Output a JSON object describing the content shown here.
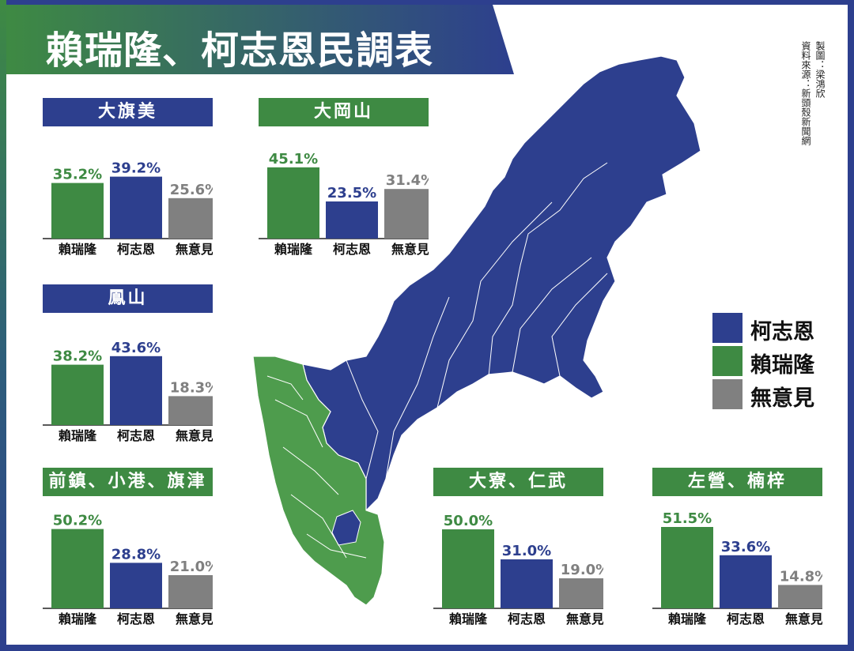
{
  "title": "賴瑞隆、柯志恩民調表",
  "credits": [
    "製圖：梁鴻欣",
    "資料來源：新頭殼新聞網"
  ],
  "colors": {
    "green": "#3e8a43",
    "blue": "#2d3f8e",
    "gray": "#808080",
    "border": "#2d3f8e"
  },
  "legend": [
    {
      "label": "柯志恩",
      "color": "#2d3f8e"
    },
    {
      "label": "賴瑞隆",
      "color": "#3e8a43"
    },
    {
      "label": "無意見",
      "color": "#808080"
    }
  ],
  "chart_data": [
    {
      "type": "bar",
      "title": "大旗美",
      "title_color": "#2d3f8e",
      "categories": [
        "賴瑞隆",
        "柯志恩",
        "無意見"
      ],
      "values": [
        35.2,
        39.2,
        25.6
      ],
      "labels": [
        "35.2%",
        "39.2%",
        "25.6%"
      ],
      "colors": [
        "#3e8a43",
        "#2d3f8e",
        "#808080"
      ],
      "unit": "%"
    },
    {
      "type": "bar",
      "title": "大岡山",
      "title_color": "#3e8a43",
      "categories": [
        "賴瑞隆",
        "柯志恩",
        "無意見"
      ],
      "values": [
        45.1,
        23.5,
        31.4
      ],
      "labels": [
        "45.1%",
        "23.5%",
        "31.4%"
      ],
      "colors": [
        "#3e8a43",
        "#2d3f8e",
        "#808080"
      ],
      "unit": "%"
    },
    {
      "type": "bar",
      "title": "鳳山",
      "title_color": "#2d3f8e",
      "categories": [
        "賴瑞隆",
        "柯志恩",
        "無意見"
      ],
      "values": [
        38.2,
        43.6,
        18.3
      ],
      "labels": [
        "38.2%",
        "43.6%",
        "18.3%"
      ],
      "colors": [
        "#3e8a43",
        "#2d3f8e",
        "#808080"
      ],
      "unit": "%"
    },
    {
      "type": "bar",
      "title": "前鎮、小港、旗津",
      "title_color": "#3e8a43",
      "categories": [
        "賴瑞隆",
        "柯志恩",
        "無意見"
      ],
      "values": [
        50.2,
        28.8,
        21.0
      ],
      "labels": [
        "50.2%",
        "28.8%",
        "21.0%"
      ],
      "colors": [
        "#3e8a43",
        "#2d3f8e",
        "#808080"
      ],
      "unit": "%"
    },
    {
      "type": "bar",
      "title": "大寮、仁武",
      "title_color": "#3e8a43",
      "categories": [
        "賴瑞隆",
        "柯志恩",
        "無意見"
      ],
      "values": [
        50.0,
        31.0,
        19.0
      ],
      "labels": [
        "50.0%",
        "31.0%",
        "19.0%"
      ],
      "colors": [
        "#3e8a43",
        "#2d3f8e",
        "#808080"
      ],
      "unit": "%"
    },
    {
      "type": "bar",
      "title": "左營、楠梓",
      "title_color": "#3e8a43",
      "categories": [
        "賴瑞隆",
        "柯志恩",
        "無意見"
      ],
      "values": [
        51.5,
        33.6,
        14.8
      ],
      "labels": [
        "51.5%",
        "33.6%",
        "14.8%"
      ],
      "colors": [
        "#3e8a43",
        "#2d3f8e",
        "#808080"
      ],
      "unit": "%"
    }
  ]
}
